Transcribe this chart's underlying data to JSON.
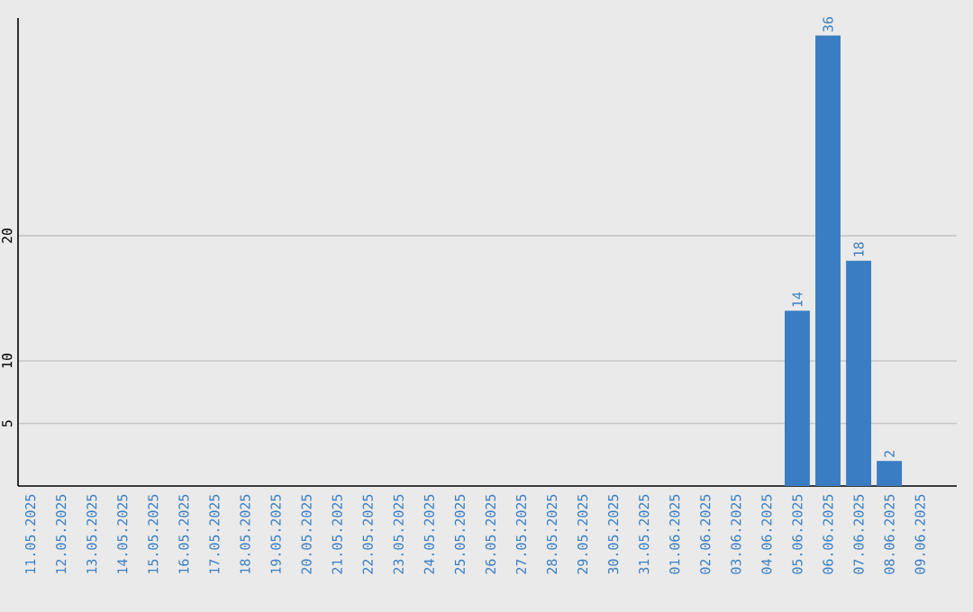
{
  "chart_data": {
    "type": "bar",
    "categories": [
      "11.05.2025",
      "12.05.2025",
      "13.05.2025",
      "14.05.2025",
      "15.05.2025",
      "16.05.2025",
      "17.05.2025",
      "18.05.2025",
      "19.05.2025",
      "20.05.2025",
      "21.05.2025",
      "22.05.2025",
      "23.05.2025",
      "24.05.2025",
      "25.05.2025",
      "26.05.2025",
      "27.05.2025",
      "28.05.2025",
      "29.05.2025",
      "30.05.2025",
      "31.05.2025",
      "01.06.2025",
      "02.06.2025",
      "03.06.2025",
      "04.06.2025",
      "05.06.2025",
      "06.06.2025",
      "07.06.2025",
      "08.06.2025",
      "09.06.2025"
    ],
    "values": [
      0,
      0,
      0,
      0,
      0,
      0,
      0,
      0,
      0,
      0,
      0,
      0,
      0,
      0,
      0,
      0,
      0,
      0,
      0,
      0,
      0,
      0,
      0,
      0,
      0,
      14,
      36,
      18,
      2,
      0
    ],
    "value_labels": [
      null,
      null,
      null,
      null,
      null,
      null,
      null,
      null,
      null,
      null,
      null,
      null,
      null,
      null,
      null,
      null,
      null,
      null,
      null,
      null,
      null,
      null,
      null,
      null,
      null,
      "14",
      "36",
      "18",
      "2",
      null
    ],
    "color": "#3a7dc2",
    "ylim": [
      0,
      37.4
    ],
    "yticks": [
      5,
      10,
      20
    ],
    "grid": "y"
  }
}
